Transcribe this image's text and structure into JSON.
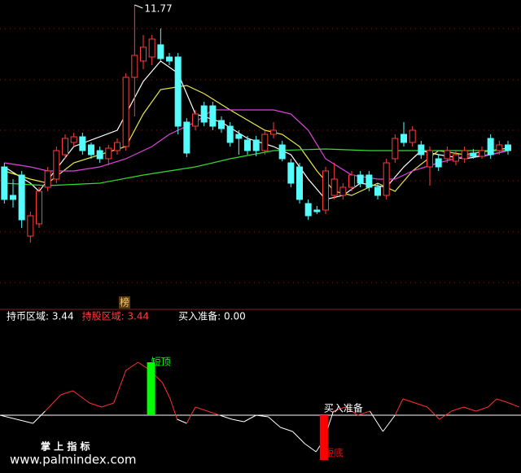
{
  "chart_data": [
    {
      "type": "candlestick",
      "x": [
        0,
        1,
        2,
        3,
        4,
        5,
        6,
        7,
        8,
        9,
        10,
        11,
        12,
        13,
        14,
        15,
        16,
        17,
        18,
        19,
        20,
        21,
        22,
        23,
        24,
        25,
        26,
        27,
        28,
        29,
        30,
        31,
        32,
        33,
        34,
        35,
        36,
        37,
        38,
        39,
        40,
        41,
        42,
        43,
        44,
        45,
        46,
        47,
        48,
        49,
        50,
        51,
        52,
        53,
        54,
        55,
        56,
        57,
        58
      ],
      "open": [
        9.78,
        9.43,
        9.68,
        8.93,
        9.08,
        9.53,
        9.63,
        9.93,
        10.08,
        10.15,
        10.05,
        9.98,
        9.88,
        9.98,
        10.03,
        10.88,
        11.08,
        11.13,
        11.28,
        11.13,
        11.13,
        10.33,
        10.28,
        10.53,
        10.53,
        10.35,
        10.28,
        10.18,
        10.11,
        10.11,
        9.98,
        10.18,
        10.05,
        9.83,
        9.78,
        9.33,
        9.25,
        9.25,
        9.43,
        9.43,
        9.53,
        9.68,
        9.68,
        9.53,
        9.43,
        9.88,
        10.18,
        10.08,
        10.05,
        9.78,
        9.88,
        9.88,
        9.85,
        9.88,
        9.95,
        9.91,
        10.13,
        9.98,
        10.05
      ],
      "close": [
        9.38,
        9.38,
        9.13,
        9.18,
        9.48,
        9.73,
        9.98,
        10.13,
        10.15,
        9.98,
        9.93,
        9.88,
        10.01,
        10.08,
        10.88,
        11.15,
        11.25,
        11.35,
        11.11,
        11.08,
        10.28,
        9.95,
        10.43,
        10.33,
        10.28,
        10.25,
        10.08,
        10.13,
        9.98,
        9.98,
        10.18,
        10.23,
        9.88,
        9.58,
        9.38,
        9.18,
        9.23,
        9.73,
        9.63,
        9.53,
        9.68,
        9.58,
        9.53,
        9.43,
        9.83,
        10.13,
        10.08,
        10.23,
        9.93,
        9.98,
        9.78,
        9.98,
        9.93,
        9.98,
        9.91,
        9.98,
        9.93,
        10.05,
        9.98
      ],
      "high": [
        9.83,
        9.63,
        9.73,
        9.23,
        9.53,
        9.78,
        10.03,
        10.18,
        10.2,
        10.2,
        10.08,
        10.03,
        10.05,
        10.13,
        10.93,
        11.77,
        11.4,
        11.4,
        11.48,
        11.18,
        11.18,
        10.38,
        10.48,
        10.58,
        10.58,
        10.4,
        10.33,
        10.23,
        10.16,
        10.16,
        10.23,
        10.33,
        10.1,
        9.88,
        9.83,
        9.38,
        9.3,
        9.78,
        9.83,
        9.58,
        9.73,
        9.73,
        9.73,
        9.58,
        9.88,
        10.18,
        10.33,
        10.28,
        10.1,
        10.03,
        9.93,
        10.03,
        9.98,
        10.03,
        10.0,
        10.03,
        10.18,
        10.1,
        10.1
      ],
      "low": [
        9.33,
        9.28,
        9.03,
        8.85,
        9.03,
        9.48,
        9.58,
        9.88,
        10.03,
        9.93,
        9.88,
        9.83,
        9.8,
        9.93,
        9.98,
        10.4,
        10.98,
        11.03,
        11.08,
        11.03,
        10.18,
        9.9,
        10.23,
        10.28,
        10.23,
        10.2,
        10.03,
        9.93,
        9.93,
        9.91,
        9.93,
        10.13,
        9.85,
        9.53,
        9.33,
        9.13,
        9.2,
        9.2,
        9.38,
        9.38,
        9.48,
        9.53,
        9.48,
        9.38,
        9.38,
        9.83,
        10.03,
        10.03,
        9.88,
        9.55,
        9.73,
        9.83,
        9.8,
        9.83,
        9.88,
        9.88,
        9.88,
        9.93,
        9.93
      ],
      "up_color": "#ff3c3c",
      "down_color": "#54fcfc",
      "high_mark": 11.77,
      "series": [
        {
          "color": "#ffffff",
          "x": [
            0,
            3,
            4,
            8,
            13,
            16,
            18,
            20,
            22,
            25,
            28,
            31,
            33,
            35,
            37,
            39,
            41,
            44,
            46,
            48,
            50,
            53,
            56,
            58
          ],
          "values": [
            9.78,
            9.58,
            9.48,
            10.03,
            10.23,
            10.83,
            11.08,
            10.93,
            10.43,
            10.33,
            10.13,
            10.03,
            9.93,
            9.63,
            9.38,
            9.43,
            9.58,
            9.53,
            9.78,
            9.98,
            9.93,
            9.88,
            9.93,
            9.98
          ]
        },
        {
          "color": "#e8e84a",
          "x": [
            0,
            3,
            5,
            8,
            11,
            14,
            16,
            18,
            21,
            23,
            26,
            30,
            32,
            34,
            36,
            38,
            40,
            43,
            45,
            47,
            50,
            53,
            56,
            58
          ],
          "values": [
            9.73,
            9.63,
            9.58,
            9.83,
            9.93,
            10.03,
            10.43,
            10.73,
            10.78,
            10.68,
            10.48,
            10.23,
            10.18,
            10.03,
            9.73,
            9.48,
            9.43,
            9.58,
            9.48,
            9.73,
            9.98,
            9.93,
            9.98,
            10.01
          ]
        },
        {
          "color": "#dd44dd",
          "x": [
            0,
            3,
            5,
            8,
            11,
            14,
            17,
            19,
            22,
            24,
            28,
            31,
            33,
            35,
            37,
            40,
            43,
            45,
            47,
            50,
            53,
            56,
            58
          ],
          "values": [
            9.83,
            9.78,
            9.73,
            9.73,
            9.78,
            9.88,
            10.03,
            10.18,
            10.33,
            10.48,
            10.48,
            10.48,
            10.43,
            10.23,
            9.88,
            9.68,
            9.63,
            9.63,
            9.73,
            9.83,
            9.91,
            9.93,
            9.98
          ]
        },
        {
          "color": "#33dd33",
          "x": [
            0,
            5,
            11,
            16,
            22,
            26,
            31,
            37,
            42,
            47,
            53,
            58
          ],
          "values": [
            9.58,
            9.55,
            9.58,
            9.68,
            9.78,
            9.88,
            9.98,
            10.0,
            9.98,
            9.98,
            9.98,
            9.98
          ]
        }
      ],
      "xlim": [
        -0.5,
        59.5
      ],
      "ylim": [
        8.03,
        11.83
      ],
      "badge": "榜"
    },
    {
      "type": "line",
      "legend": [
        "持币区域: 3.44",
        "持股区域: 3.44",
        "买入准备: 0.00"
      ],
      "legend_colors": [
        "#ffffff",
        "#ff3c3c",
        "#ffffff"
      ],
      "x": [
        -0.5,
        1.4,
        3.3,
        4.7,
        6.5,
        7.9,
        9.8,
        11.2,
        12.6,
        14,
        15.4,
        16.8,
        18.2,
        19.1,
        19.9,
        21,
        22,
        23.4,
        24.8,
        26.2,
        27.6,
        29,
        30.4,
        31.8,
        33.2,
        34.6,
        35.9,
        36.8,
        37.9,
        39.3,
        40.7,
        42.1,
        43.6,
        45,
        45.9,
        47.3,
        48.7,
        50.1,
        51.5,
        52.9,
        54.3,
        55.7,
        56.7,
        58.1,
        59.3
      ],
      "values": [
        0,
        -5,
        -10,
        5,
        25,
        30,
        15,
        10,
        15,
        55,
        65,
        55,
        40,
        20,
        -5,
        -10,
        10,
        5,
        0,
        -5,
        -8,
        0,
        -2,
        -15,
        -20,
        -35,
        -45,
        -30,
        5,
        10,
        0,
        5,
        -20,
        0,
        20,
        15,
        10,
        -5,
        5,
        10,
        5,
        10,
        20,
        15,
        10
      ],
      "above_color": "#ff3030",
      "below_color": "#ffffff",
      "signals": [
        {
          "label": "短顶",
          "x": 16.9,
          "value": 65,
          "color": "#00ff00"
        },
        {
          "label": "短底",
          "x": 36.8,
          "value": -55,
          "color": "#ff0000"
        }
      ],
      "annotation": {
        "text": "买入准备",
        "x": 36.8
      },
      "xlim": [
        -0.5,
        59.5
      ],
      "ylim": [
        -71,
        110
      ]
    }
  ],
  "watermark": {
    "title": "掌 上 指 标",
    "url": "www.palmindex.com"
  }
}
